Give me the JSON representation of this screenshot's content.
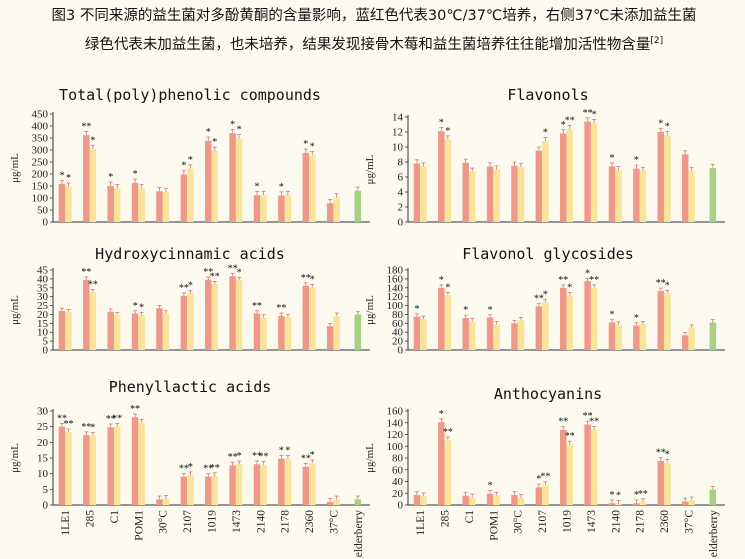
{
  "caption": {
    "line1": "图3  不同来源的益生菌对多酚黄酮的含量影响，蓝红色代表30℃/37℃培养，右侧37℃未添加益生菌",
    "line2": "绿色代表未加益生菌，也未培养，结果发现接骨木莓和益生菌培养往往能增加活性物含量",
    "ref": "[2]"
  },
  "colors": {
    "bar30": "#f09888",
    "bar37": "#fae49a",
    "control": "#a8cf86",
    "error": "#c77d7d"
  },
  "chart_data": [
    {
      "type": "bar",
      "title": "Total(poly)phenolic compounds",
      "ylabel": "μg/mL",
      "ylim": [
        0,
        450
      ],
      "yticks": [
        0,
        50,
        100,
        150,
        200,
        250,
        300,
        350,
        400,
        450
      ],
      "categories": [
        "1LE1",
        "285",
        "C1",
        "POM1",
        "30°C",
        "2107",
        "1019",
        "1473",
        "2140",
        "2178",
        "2360",
        "37°C",
        "elderberry"
      ],
      "series": [
        {
          "values": [
            158,
            362,
            150,
            163,
            128,
            198,
            338,
            370,
            112,
            110,
            288,
            78,
            130
          ]
        },
        {
          "values": [
            147,
            304,
            140,
            140,
            125,
            222,
            296,
            348,
            112,
            112,
            278,
            102,
            null
          ]
        }
      ],
      "stars": [
        [
          "*",
          "*"
        ],
        [
          "**",
          "*"
        ],
        [
          "*",
          ""
        ],
        [
          "*",
          ""
        ],
        [
          "",
          ""
        ],
        [
          "*",
          "*"
        ],
        [
          "*",
          "*"
        ],
        [
          "*",
          "*"
        ],
        [
          "*",
          ""
        ],
        [
          "*",
          ""
        ],
        [
          "*",
          "*"
        ],
        [
          "",
          ""
        ],
        [
          "",
          ""
        ]
      ]
    },
    {
      "type": "bar",
      "title": "Flavonols",
      "ylabel": "μg/mL",
      "ylim": [
        0,
        14
      ],
      "yticks": [
        0,
        2,
        4,
        6,
        8,
        10,
        12,
        14
      ],
      "categories": [
        "1LE1",
        "285",
        "C1",
        "POM1",
        "30°C",
        "2107",
        "1019",
        "1473",
        "2140",
        "2178",
        "2360",
        "37°C",
        "elderberry"
      ],
      "series": [
        {
          "values": [
            7.8,
            12.1,
            7.9,
            7.4,
            7.5,
            9.5,
            11.8,
            13.4,
            7.4,
            7.1,
            12.0,
            9.0,
            7.2
          ]
        },
        {
          "values": [
            7.4,
            11.0,
            6.7,
            7.0,
            7.3,
            10.8,
            12.4,
            13.2,
            6.9,
            6.8,
            11.6,
            6.8,
            null
          ]
        }
      ],
      "stars": [
        [
          "",
          ""
        ],
        [
          "*",
          "*"
        ],
        [
          "",
          ""
        ],
        [
          "",
          ""
        ],
        [
          "",
          ""
        ],
        [
          "",
          "*"
        ],
        [
          "*",
          "**"
        ],
        [
          "**",
          "*"
        ],
        [
          "*",
          ""
        ],
        [
          "*",
          ""
        ],
        [
          "*",
          "*"
        ],
        [
          "",
          ""
        ],
        [
          "",
          ""
        ]
      ]
    },
    {
      "type": "bar",
      "title": "Hydroxycinnamic acids",
      "ylabel": "μg/mL",
      "ylim": [
        0,
        45
      ],
      "yticks": [
        0,
        5,
        10,
        15,
        20,
        25,
        30,
        35,
        40,
        45
      ],
      "categories": [
        "1LE1",
        "285",
        "C1",
        "POM1",
        "30°C",
        "2107",
        "1019",
        "1473",
        "2140",
        "2178",
        "2360",
        "37°C",
        "elderberry"
      ],
      "series": [
        {
          "values": [
            22,
            39.5,
            21.5,
            20.5,
            23.5,
            30.5,
            39.5,
            41.5,
            20.5,
            19.2,
            36.2,
            13.4,
            20.0
          ]
        },
        {
          "values": [
            21.2,
            32.5,
            19.5,
            19.5,
            20.5,
            31.8,
            37.0,
            39.3,
            18.2,
            18.5,
            35.2,
            19.2,
            null
          ]
        }
      ],
      "stars": [
        [
          "",
          ""
        ],
        [
          "**",
          "**"
        ],
        [
          "",
          ""
        ],
        [
          "*",
          "*"
        ],
        [
          "",
          ""
        ],
        [
          "**",
          "*"
        ],
        [
          "**",
          "**"
        ],
        [
          "**",
          "*"
        ],
        [
          "**",
          ""
        ],
        [
          "**",
          ""
        ],
        [
          "**",
          "*"
        ],
        [
          "",
          ""
        ],
        [
          "",
          ""
        ]
      ]
    },
    {
      "type": "bar",
      "title": "Flavonol glycosides",
      "ylabel": "μg/mL",
      "ylim": [
        0,
        180
      ],
      "yticks": [
        0,
        20,
        40,
        60,
        80,
        100,
        120,
        140,
        160,
        180
      ],
      "categories": [
        "1LE1",
        "285",
        "C1",
        "POM1",
        "30°C",
        "2107",
        "1019",
        "1473",
        "2140",
        "2178",
        "2360",
        "37°C",
        "elderberry"
      ],
      "series": [
        {
          "values": [
            75,
            140,
            72,
            73,
            60,
            98,
            140,
            155,
            62,
            55,
            133,
            33,
            62
          ]
        },
        {
          "values": [
            70,
            123,
            65,
            58,
            67,
            107,
            123,
            140,
            57,
            58,
            128,
            50,
            null
          ]
        }
      ],
      "stars": [
        [
          "*",
          ""
        ],
        [
          "*",
          "*"
        ],
        [
          "*",
          ""
        ],
        [
          "*",
          ""
        ],
        [
          "",
          ""
        ],
        [
          "**",
          "*"
        ],
        [
          "**",
          "*"
        ],
        [
          "*",
          "**"
        ],
        [
          "*",
          ""
        ],
        [
          "*",
          ""
        ],
        [
          "**",
          "*"
        ],
        [
          "",
          ""
        ],
        [
          "",
          ""
        ]
      ]
    },
    {
      "type": "bar",
      "title": "Phenyllactic acids",
      "ylabel": "μg/mL",
      "ylim": [
        0,
        30
      ],
      "yticks": [
        0,
        5,
        10,
        15,
        20,
        25,
        30
      ],
      "categories": [
        "1LE1",
        "285",
        "C1",
        "POM1",
        "30°C",
        "2107",
        "1019",
        "1473",
        "2140",
        "2178",
        "2360",
        "37°C",
        "elderberry"
      ],
      "series": [
        {
          "values": [
            25,
            22.3,
            24.8,
            28,
            1.8,
            9,
            9,
            12.6,
            13,
            14.8,
            12.2,
            1.0,
            1.8
          ]
        },
        {
          "values": [
            23.2,
            22.1,
            25.0,
            26.3,
            2.0,
            9.5,
            9.2,
            13.0,
            12.8,
            14.7,
            13.3,
            1.8,
            null
          ]
        }
      ],
      "stars": [
        [
          "**",
          "**"
        ],
        [
          "**",
          "*"
        ],
        [
          "**",
          "**"
        ],
        [
          "**",
          ""
        ],
        [
          "",
          ""
        ],
        [
          "**",
          "*"
        ],
        [
          "**",
          "**"
        ],
        [
          "**",
          "*"
        ],
        [
          "**",
          "**"
        ],
        [
          "*",
          "*"
        ],
        [
          "**",
          "*"
        ],
        [
          "",
          ""
        ],
        [
          "",
          ""
        ]
      ]
    },
    {
      "type": "bar",
      "title": "Anthocyanins",
      "ylabel": "μg/mL",
      "ylim": [
        0,
        160
      ],
      "yticks": [
        0,
        20,
        40,
        60,
        80,
        100,
        120,
        140,
        160
      ],
      "categories": [
        "1LE1",
        "285",
        "C1",
        "POM1",
        "30°C",
        "2107",
        "1019",
        "1473",
        "2140",
        "2178",
        "2360",
        "37°C",
        "elderberry"
      ],
      "series": [
        {
          "values": [
            17,
            141,
            16,
            19,
            17,
            30,
            128,
            137,
            3,
            3,
            75,
            6,
            26
          ]
        },
        {
          "values": [
            15,
            110,
            13,
            16,
            12,
            34,
            103,
            128,
            2,
            5,
            72,
            8,
            null
          ]
        }
      ],
      "stars": [
        [
          "",
          ""
        ],
        [
          "*",
          "**"
        ],
        [
          "",
          ""
        ],
        [
          "*",
          ""
        ],
        [
          "",
          ""
        ],
        [
          "*",
          "**"
        ],
        [
          "**",
          "**"
        ],
        [
          "**",
          "**"
        ],
        [
          "*",
          "*"
        ],
        [
          "*",
          "**"
        ],
        [
          "**",
          "*"
        ],
        [
          "",
          ""
        ],
        [
          "",
          ""
        ]
      ]
    }
  ]
}
